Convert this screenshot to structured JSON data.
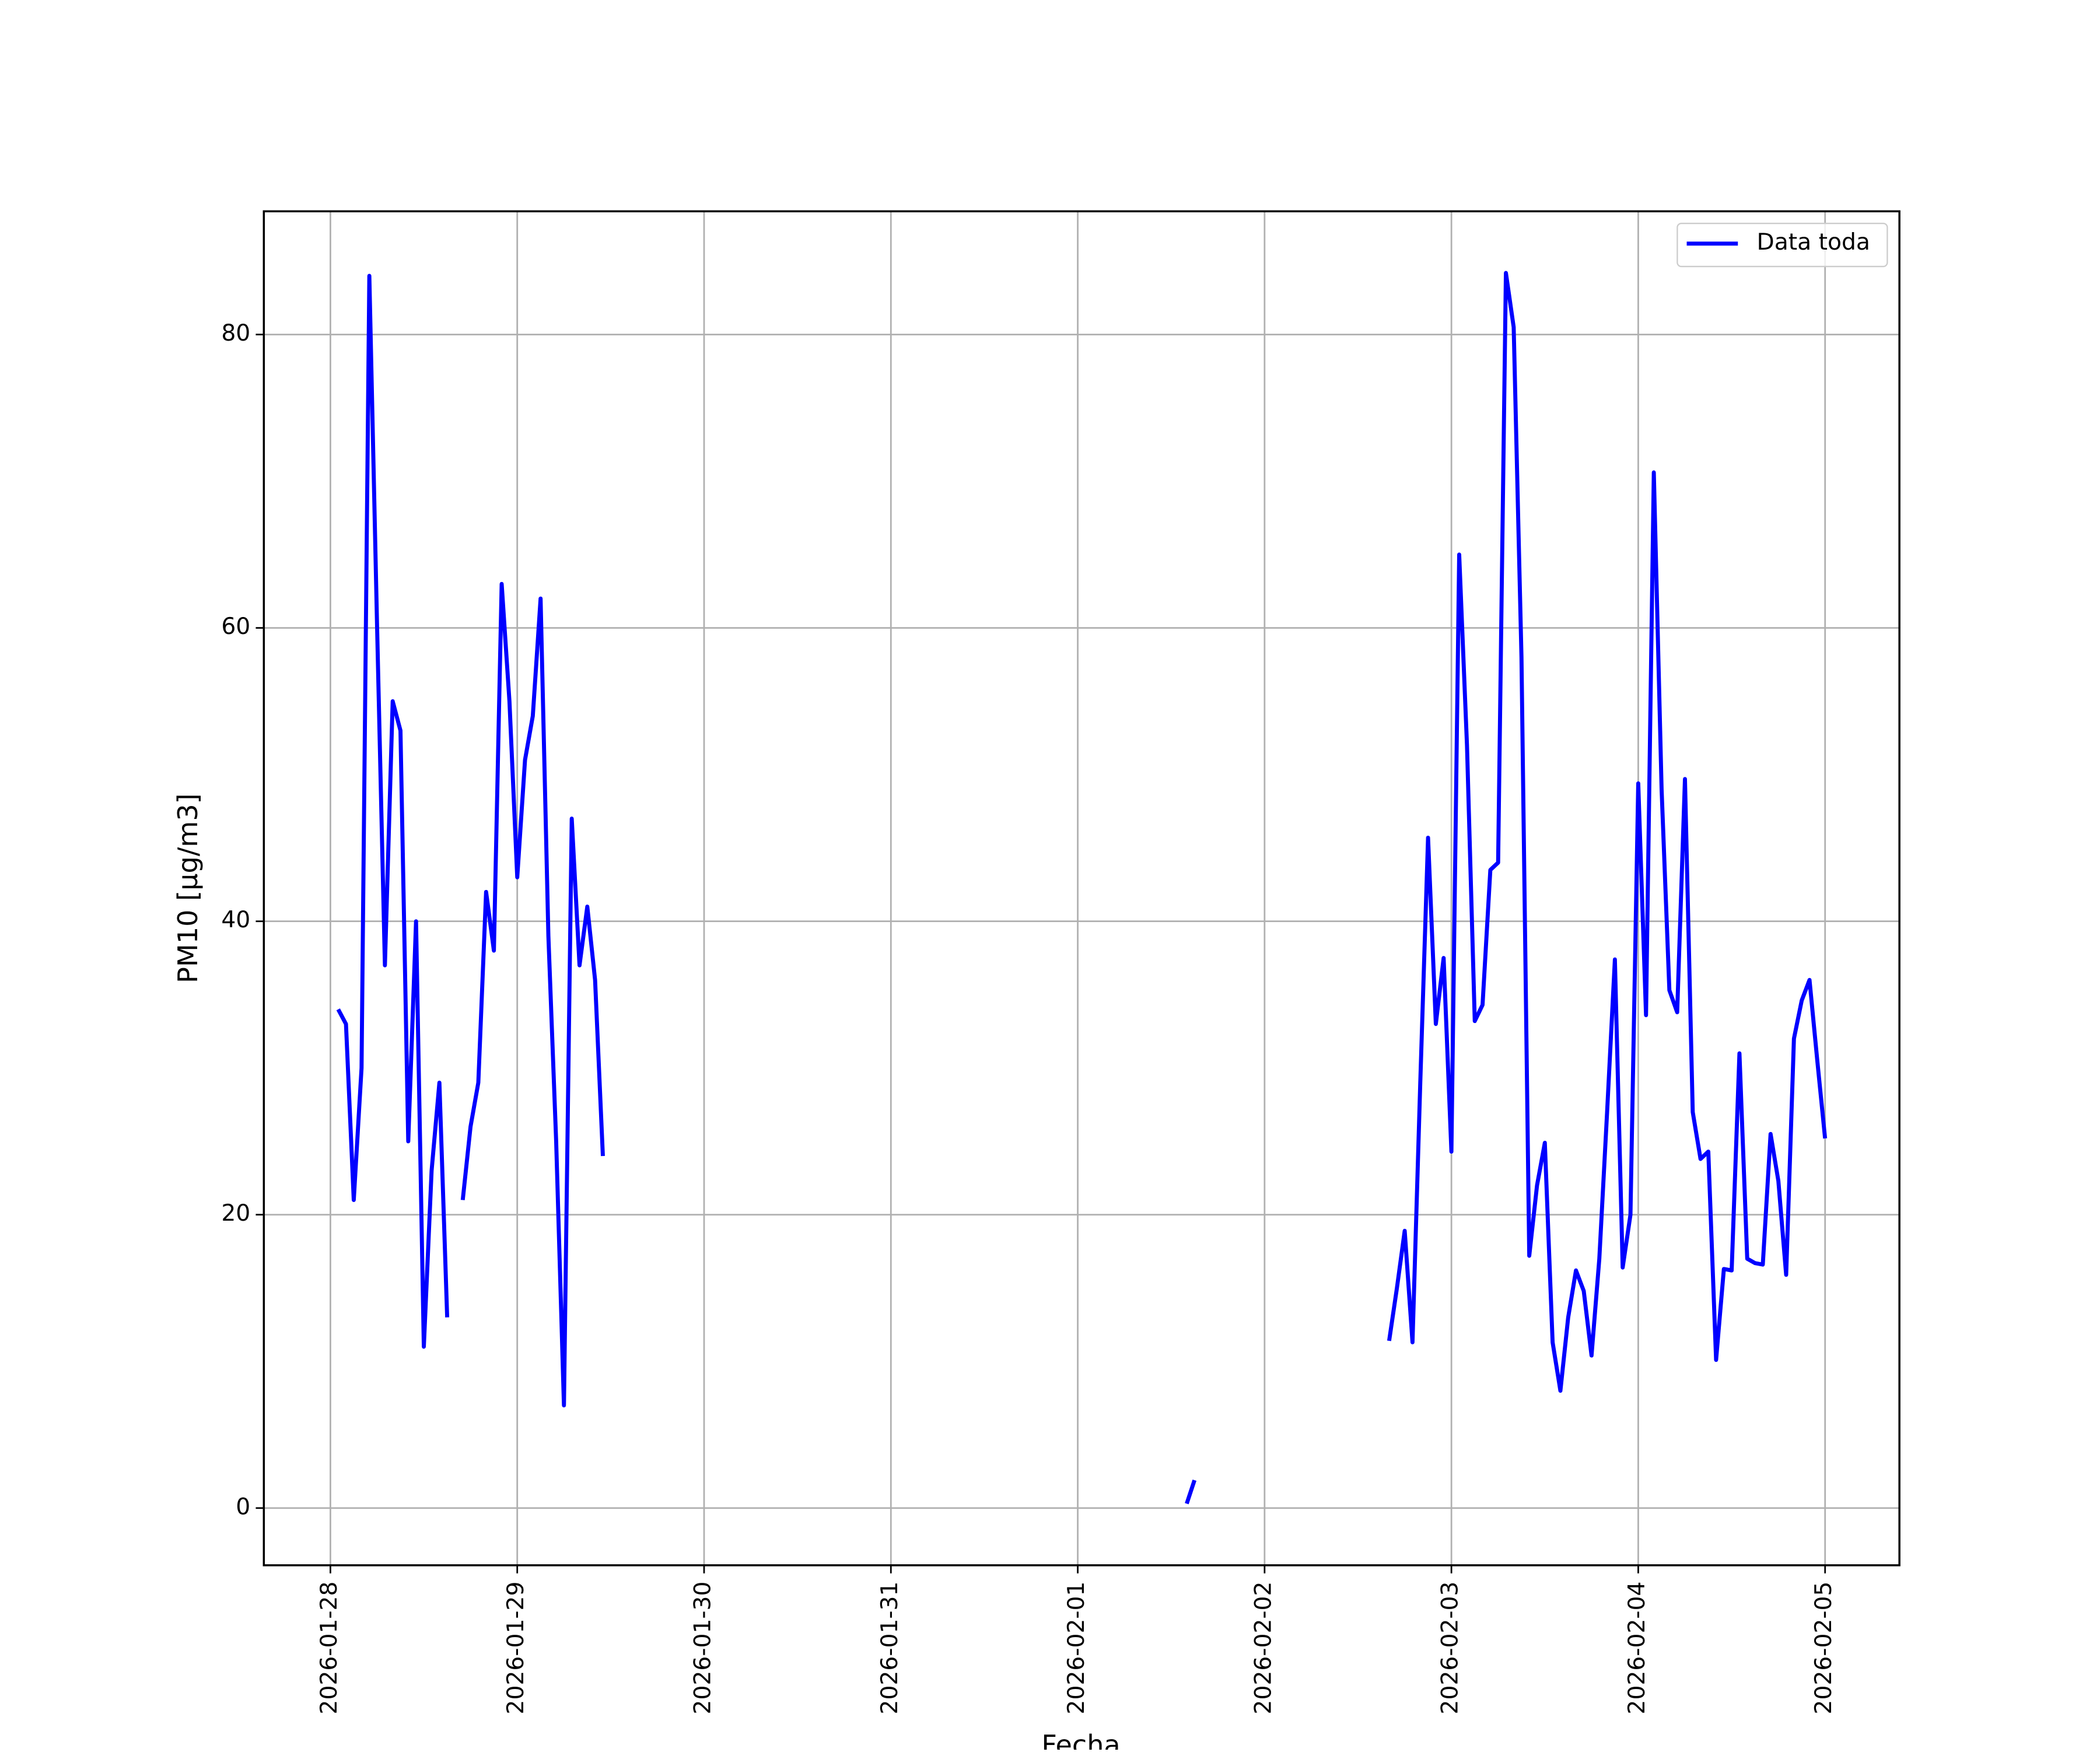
{
  "chart_data": {
    "type": "line",
    "xlabel": "Fecha",
    "ylabel": "PM10 [μg/m3]",
    "x": [
      "2026-01-28T01:00",
      "2026-01-28T02:00",
      "2026-01-28T03:00",
      "2026-01-28T04:00",
      "2026-01-28T05:00",
      "2026-01-28T06:00",
      "2026-01-28T07:00",
      "2026-01-28T08:00",
      "2026-01-28T09:00",
      "2026-01-28T10:00",
      "2026-01-28T11:00",
      "2026-01-28T12:00",
      "2026-01-28T13:00",
      "2026-01-28T14:00",
      "2026-01-28T15:00",
      "2026-01-28T16:00",
      "2026-01-28T17:00",
      "2026-01-28T18:00",
      "2026-01-28T19:00",
      "2026-01-28T20:00",
      "2026-01-28T21:00",
      "2026-01-28T22:00",
      "2026-01-28T23:00",
      "2026-01-29T00:00",
      "2026-01-29T01:00",
      "2026-01-29T02:00",
      "2026-01-29T03:00",
      "2026-01-29T04:00",
      "2026-01-29T05:00",
      "2026-01-29T06:00",
      "2026-01-29T07:00",
      "2026-01-29T08:00",
      "2026-01-29T09:00",
      "2026-01-29T10:00",
      "2026-01-29T11:00",
      "2026-01-29T12:00",
      "2026-02-01T14:00",
      "2026-02-01T15:00",
      "2026-02-01T16:00",
      "2026-02-02T16:00",
      "2026-02-02T17:00",
      "2026-02-02T18:00",
      "2026-02-02T19:00",
      "2026-02-02T20:00",
      "2026-02-02T21:00",
      "2026-02-02T22:00",
      "2026-02-02T23:00",
      "2026-02-03T00:00",
      "2026-02-03T01:00",
      "2026-02-03T02:00",
      "2026-02-03T03:00",
      "2026-02-03T04:00",
      "2026-02-03T05:00",
      "2026-02-03T06:00",
      "2026-02-03T07:00",
      "2026-02-03T08:00",
      "2026-02-03T09:00",
      "2026-02-03T10:00",
      "2026-02-03T11:00",
      "2026-02-03T12:00",
      "2026-02-03T13:00",
      "2026-02-03T14:00",
      "2026-02-03T15:00",
      "2026-02-03T16:00",
      "2026-02-03T17:00",
      "2026-02-03T18:00",
      "2026-02-03T19:00",
      "2026-02-03T20:00",
      "2026-02-03T21:00",
      "2026-02-03T22:00",
      "2026-02-03T23:00",
      "2026-02-04T00:00",
      "2026-02-04T01:00",
      "2026-02-04T02:00",
      "2026-02-04T03:00",
      "2026-02-04T04:00",
      "2026-02-04T05:00",
      "2026-02-04T06:00",
      "2026-02-04T07:00",
      "2026-02-04T08:00",
      "2026-02-04T09:00",
      "2026-02-04T10:00",
      "2026-02-04T11:00",
      "2026-02-04T12:00",
      "2026-02-04T13:00",
      "2026-02-04T14:00",
      "2026-02-04T15:00",
      "2026-02-04T16:00",
      "2026-02-04T17:00",
      "2026-02-04T18:00",
      "2026-02-04T19:00",
      "2026-02-04T20:00",
      "2026-02-04T21:00",
      "2026-02-04T22:00",
      "2026-02-04T23:00",
      "2026-02-05T00:00"
    ],
    "series": [
      {
        "name": "Data toda",
        "color": "#0000ff",
        "values": [
          34,
          33,
          21,
          30,
          84,
          60,
          37,
          55,
          53,
          25,
          40,
          11,
          23,
          29,
          13,
          null,
          21,
          26,
          29,
          42,
          38,
          63,
          55,
          43,
          51,
          54,
          62,
          39,
          25,
          7,
          47,
          37,
          41,
          36,
          24,
          null,
          0.3,
          1.9,
          null,
          11.4,
          15,
          18.9,
          11.3,
          29,
          45.7,
          33,
          37.5,
          24.3,
          65,
          52,
          33.2,
          34.3,
          43.5,
          44,
          84.2,
          80.5,
          58,
          17.2,
          22,
          24.9,
          11.3,
          8,
          13,
          16.2,
          14.8,
          10.4,
          17,
          27,
          37.4,
          16.4,
          20,
          49.4,
          33.6,
          70.6,
          49,
          35.3,
          33.8,
          49.7,
          27,
          23.8,
          24.3,
          10.1,
          16.3,
          16.2,
          31,
          17,
          16.7,
          16.6,
          25.5,
          22.3,
          15.9,
          32,
          34.6,
          36,
          30.5,
          25.2
        ]
      }
    ],
    "xlim": [
      "2026-01-27T15:27",
      "2026-02-05T09:33"
    ],
    "xticks": [
      "2026-01-28",
      "2026-01-29",
      "2026-01-30",
      "2026-01-31",
      "2026-02-01",
      "2026-02-02",
      "2026-02-03",
      "2026-02-04",
      "2026-02-05"
    ],
    "ylim": [
      -3.9,
      88.4
    ],
    "yticks": [
      0,
      20,
      40,
      60,
      80
    ],
    "grid": true,
    "legend": "upper right"
  }
}
